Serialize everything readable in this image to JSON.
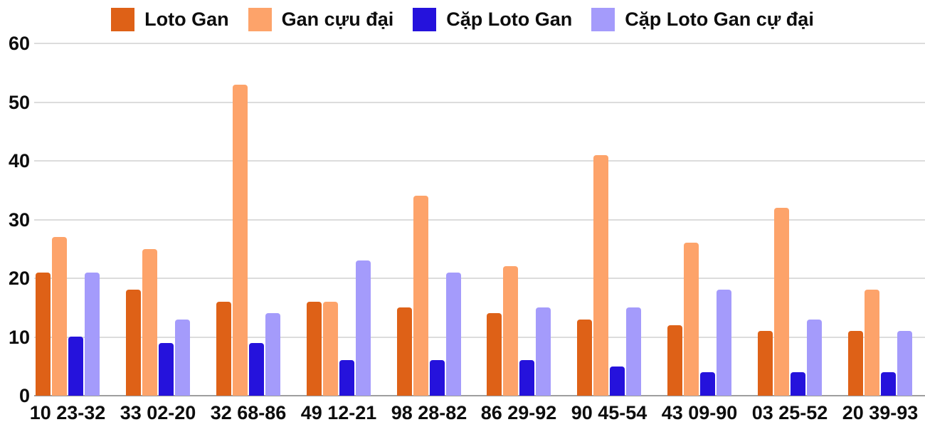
{
  "chart_data": {
    "type": "bar",
    "title": "",
    "xlabel": "",
    "ylabel": "",
    "ylim": [
      0,
      60
    ],
    "yticks": [
      0,
      10,
      20,
      30,
      40,
      50,
      60
    ],
    "grid": true,
    "legend_position": "top",
    "categories": [
      "10 23-32",
      "33 02-20",
      "32 68-86",
      "49 12-21",
      "98 28-82",
      "86 29-92",
      "90 45-54",
      "43 09-90",
      "03 25-52",
      "20 39-93"
    ],
    "series": [
      {
        "name": "Loto Gan",
        "color": "#de6117",
        "values": [
          21,
          18,
          16,
          16,
          15,
          14,
          13,
          12,
          11,
          11
        ]
      },
      {
        "name": "Gan cựu đại",
        "color": "#fda36a",
        "values": [
          27,
          25,
          53,
          16,
          34,
          22,
          41,
          26,
          32,
          18
        ]
      },
      {
        "name": "Cặp Loto Gan",
        "color": "#2512dc",
        "values": [
          10,
          9,
          9,
          6,
          6,
          6,
          5,
          4,
          4,
          4
        ]
      },
      {
        "name": "Cặp Loto Gan cự đại",
        "color": "#a49bfb",
        "values": [
          21,
          13,
          14,
          23,
          21,
          15,
          15,
          18,
          13,
          11
        ]
      }
    ],
    "colors": {
      "gridline": "#dcdcdc",
      "axis_baseline": "#9e9e9e",
      "text": "#0d0d0d",
      "background": "#ffffff"
    }
  }
}
